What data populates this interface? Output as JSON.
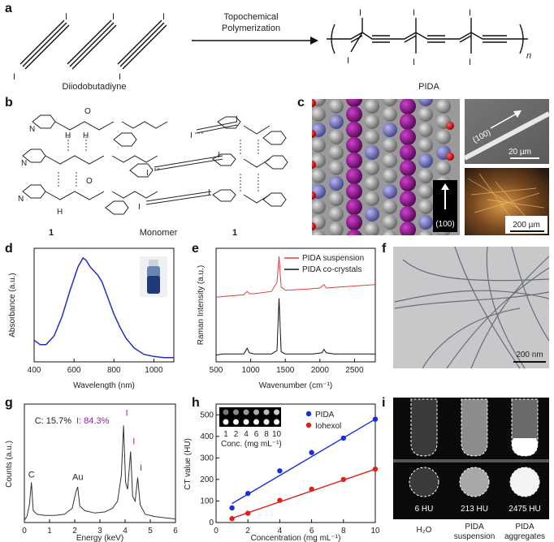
{
  "panels": [
    "a",
    "b",
    "c",
    "d",
    "e",
    "f",
    "g",
    "h",
    "i"
  ],
  "panel_a": {
    "arrow_label_1": "Topochemical",
    "arrow_label_2": "Polymerization",
    "monomer_name": "Diiodobutadiyne",
    "polymer_name": "PIDA",
    "iodine": "I",
    "repeat_n": "n"
  },
  "panel_b": {
    "label_left": "1",
    "label_center": "Monomer",
    "label_right": "1",
    "atoms": {
      "N": "N",
      "H": "H",
      "O": "O",
      "I": "I"
    }
  },
  "panel_c": {
    "direction_label": "(100)",
    "sem_direction_label": "(100)",
    "sem_scale": "20 µm",
    "optical_scale": "200 µm"
  },
  "panel_f": {
    "scale": "200 nm"
  },
  "panel_i": {
    "hu_values": [
      "6 HU",
      "213 HU",
      "2475 HU"
    ],
    "labels": [
      {
        "line1": "H₂O",
        "line2": ""
      },
      {
        "line1": "PIDA",
        "line2": "suspension"
      },
      {
        "line1": "PIDA",
        "line2": "aggregates"
      }
    ]
  },
  "chart_data": [
    {
      "panel": "d",
      "type": "line",
      "xlabel": "Wavelength (nm)",
      "ylabel": "Absorbance (a.u.)",
      "xlim": [
        400,
        1100
      ],
      "xticks": [
        400,
        600,
        800,
        1000
      ],
      "color": "#1f2fbf",
      "series": [
        {
          "x": [
            400,
            430,
            460,
            500,
            540,
            580,
            620,
            645,
            660,
            680,
            700,
            720,
            740,
            760,
            780,
            800,
            830,
            860,
            900,
            950,
            1000,
            1050,
            1100
          ],
          "y": [
            0.2,
            0.16,
            0.16,
            0.24,
            0.42,
            0.66,
            0.88,
            0.96,
            0.94,
            0.88,
            0.84,
            0.8,
            0.74,
            0.64,
            0.54,
            0.44,
            0.32,
            0.22,
            0.13,
            0.07,
            0.05,
            0.04,
            0.04
          ]
        }
      ]
    },
    {
      "panel": "e",
      "type": "line",
      "xlabel": "Wavenumber (cm⁻¹)",
      "ylabel": "Raman Intensity (a.u.)",
      "xlim": [
        500,
        2800
      ],
      "xticks": [
        500,
        1000,
        1500,
        2000,
        2500
      ],
      "legend": "top-right",
      "series": [
        {
          "name": "PIDA suspension",
          "color": "#e0403a",
          "x": [
            500,
            700,
            900,
            950,
            980,
            1050,
            1300,
            1380,
            1410,
            1440,
            1500,
            1800,
            2000,
            2060,
            2080,
            2100,
            2300,
            2800
          ],
          "y": [
            0.57,
            0.58,
            0.59,
            0.62,
            0.6,
            0.6,
            0.62,
            0.7,
            0.93,
            0.66,
            0.63,
            0.64,
            0.65,
            0.68,
            0.66,
            0.65,
            0.66,
            0.68
          ]
        },
        {
          "name": "PIDA co-crystals",
          "color": "#111111",
          "x": [
            500,
            600,
            900,
            950,
            980,
            1050,
            1300,
            1380,
            1410,
            1440,
            1500,
            1900,
            2030,
            2060,
            2090,
            2200,
            2800
          ],
          "y": [
            0.06,
            0.07,
            0.07,
            0.12,
            0.08,
            0.07,
            0.07,
            0.1,
            0.56,
            0.09,
            0.07,
            0.07,
            0.08,
            0.11,
            0.08,
            0.07,
            0.07
          ]
        }
      ]
    },
    {
      "panel": "g",
      "type": "line",
      "xlabel": "Energy (keV)",
      "ylabel": "Counts (a.u.)",
      "xlim": [
        0,
        6
      ],
      "xticks": [
        0,
        1,
        2,
        3,
        4,
        5,
        6
      ],
      "annotation": {
        "c_text": "C: 15.7%",
        "i_text": "I: 84.3%"
      },
      "peak_labels": [
        {
          "text": "C",
          "x": 0.28
        },
        {
          "text": "Au",
          "x": 2.12
        },
        {
          "text": "I",
          "x": 3.94
        },
        {
          "text": "I",
          "x": 4.22
        },
        {
          "text": "I",
          "x": 4.5
        }
      ],
      "series": [
        {
          "x": [
            0,
            0.1,
            0.2,
            0.28,
            0.35,
            0.5,
            0.8,
            1.2,
            1.6,
            1.9,
            2.05,
            2.12,
            2.2,
            2.4,
            2.8,
            3.2,
            3.5,
            3.7,
            3.85,
            3.94,
            4.02,
            4.1,
            4.22,
            4.3,
            4.4,
            4.5,
            4.6,
            4.8,
            5.2,
            5.6,
            6
          ],
          "y": [
            0.02,
            0.05,
            0.15,
            0.34,
            0.1,
            0.07,
            0.06,
            0.06,
            0.07,
            0.12,
            0.26,
            0.3,
            0.14,
            0.1,
            0.08,
            0.09,
            0.12,
            0.18,
            0.4,
            0.82,
            0.34,
            0.28,
            0.6,
            0.22,
            0.18,
            0.38,
            0.15,
            0.07,
            0.05,
            0.04,
            0.03
          ]
        }
      ]
    },
    {
      "panel": "h",
      "type": "scatter",
      "xlabel": "Concentration (mg mL⁻¹)",
      "ylabel": "CT value (HU)",
      "xlim": [
        0,
        10
      ],
      "ylim": [
        0,
        550
      ],
      "xticks": [
        0,
        2,
        4,
        6,
        8,
        10
      ],
      "yticks": [
        0,
        100,
        200,
        300,
        400,
        500
      ],
      "legend": "top-right",
      "inset_conc_values": [
        "1",
        "2",
        "4",
        "6",
        "8",
        "10"
      ],
      "inset_label": "Conc. (mg mL⁻¹)",
      "series": [
        {
          "name": "PIDA",
          "color": "#1a2ddb",
          "x": [
            1,
            2,
            4,
            6,
            8,
            10
          ],
          "y": [
            68,
            135,
            240,
            325,
            392,
            480
          ],
          "fit": [
            [
              1,
              88
            ],
            [
              10,
              480
            ]
          ]
        },
        {
          "name": "Iohexol",
          "color": "#e0201c",
          "x": [
            1,
            2,
            4,
            6,
            8,
            10
          ],
          "y": [
            18,
            43,
            103,
            155,
            200,
            248
          ],
          "fit": [
            [
              1,
              20
            ],
            [
              10,
              248
            ]
          ]
        }
      ]
    }
  ]
}
